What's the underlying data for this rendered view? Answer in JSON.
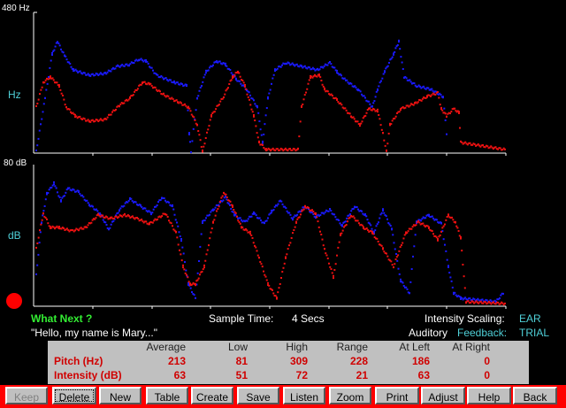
{
  "pitch_panel": {
    "max_label": "480 Hz",
    "unit_label": "Hz"
  },
  "intensity_panel": {
    "max_label": "80 dB",
    "unit_label": "dB"
  },
  "colors": {
    "blue": "#1a1aff",
    "red": "#ee1111",
    "cyan": "#4fd0d8",
    "green": "#33ee33",
    "button_bar": "#ff0000"
  },
  "info": {
    "what_next": "What Next ?",
    "phrase": "\"Hello, my name is Mary...\"",
    "sample_time_label": "Sample Time:",
    "sample_time_value": "4  Secs",
    "intensity_scaling_label": "Intensity Scaling:",
    "intensity_scaling_value": "EAR",
    "auditory_label": "Auditory",
    "feedback_label": "Feedback:",
    "feedback_value": "TRIAL"
  },
  "stats": {
    "headers": [
      "Average",
      "Low",
      "High",
      "Range",
      "At Left",
      "At Right"
    ],
    "rows": [
      {
        "label": "Pitch (Hz)",
        "values": [
          "213",
          "81",
          "309",
          "228",
          "186",
          "0"
        ]
      },
      {
        "label": "Intensity (dB)",
        "values": [
          "63",
          "51",
          "72",
          "21",
          "63",
          "0"
        ]
      }
    ]
  },
  "buttons": [
    {
      "label": "Keep",
      "state": "disabled"
    },
    {
      "label": "Delete",
      "state": "focused"
    },
    {
      "label": "New"
    },
    {
      "label": "Table"
    },
    {
      "label": "Create"
    },
    {
      "label": "Save"
    },
    {
      "label": "Listen"
    },
    {
      "label": "Zoom"
    },
    {
      "label": "Print"
    },
    {
      "label": "Adjust"
    },
    {
      "label": "Help"
    },
    {
      "label": "Back"
    }
  ]
}
